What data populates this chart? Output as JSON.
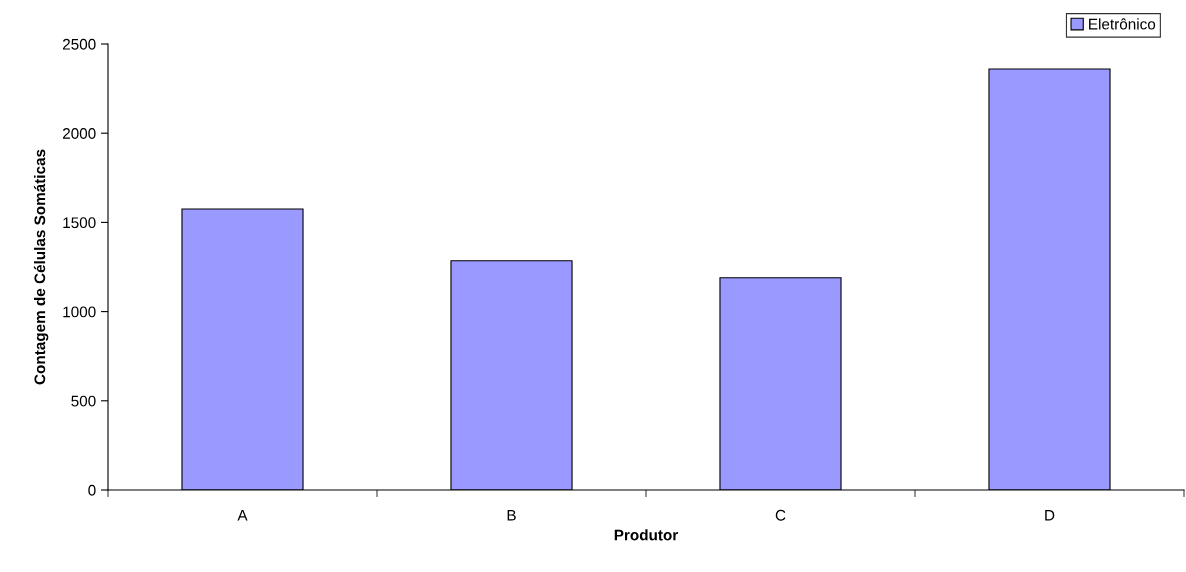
{
  "chart_data": {
    "type": "bar",
    "xlabel": "Produtor",
    "ylabel": "Contagem de Células Somáticas",
    "categories": [
      "A",
      "B",
      "C",
      "D"
    ],
    "series": [
      {
        "name": "Eletrônico",
        "color": "#9999ff",
        "values": [
          1575,
          1285,
          1190,
          2360
        ]
      }
    ],
    "ylim": [
      0,
      2500
    ],
    "yticks": [
      0,
      500,
      1000,
      1500,
      2000,
      2500
    ],
    "grid": false,
    "legend": "top right"
  }
}
